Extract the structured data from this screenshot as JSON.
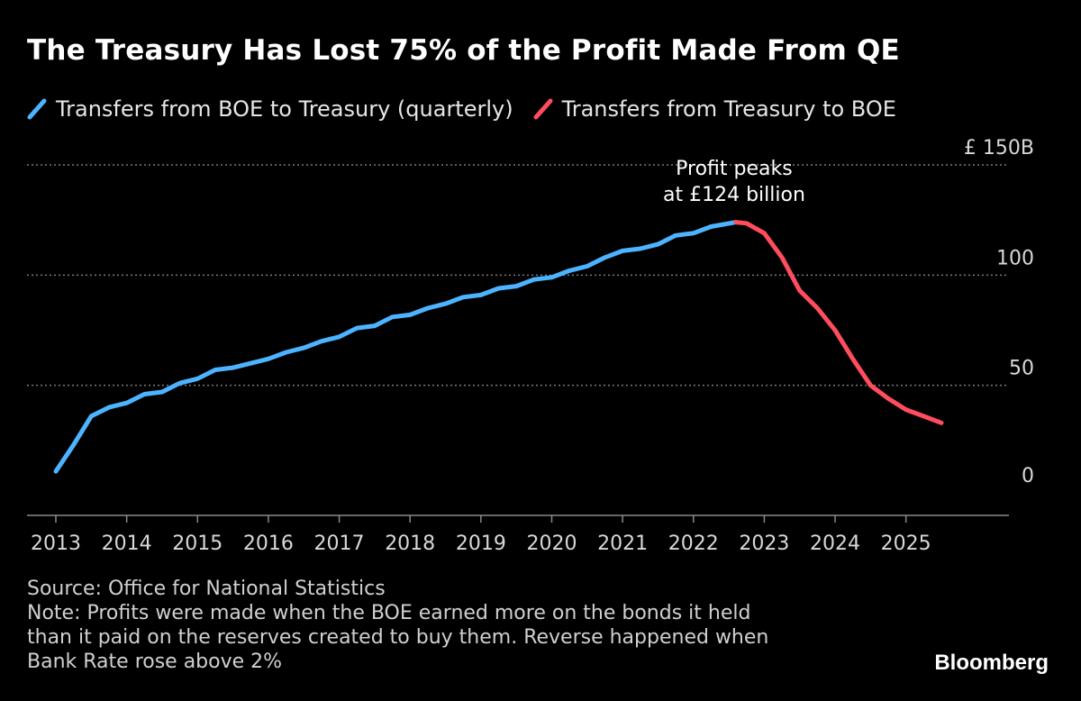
{
  "title": "The Treasury Has Lost 75% of the Profit Made From QE",
  "legend": {
    "series1": "Transfers from BOE to Treasury (quarterly)",
    "series2": "Transfers from Treasury to BOE"
  },
  "source": "Source: Office for National Statistics",
  "note_lines": [
    "Note: Profits were made when the BOE earned more on the bonds it held",
    "than it paid on the reserves created to buy them. Reverse happened when",
    "Bank Rate rose above 2%"
  ],
  "brand": "Bloomberg",
  "chart_data": {
    "type": "line",
    "title": "The Treasury Has Lost 75% of the Profit Made From QE",
    "y_unit_label": "£ 150B",
    "ylim": [
      0,
      150
    ],
    "yticks": [
      0,
      50,
      100,
      150
    ],
    "ytick_labels": [
      "0",
      "50",
      "100",
      "£ 150B"
    ],
    "xlim": [
      2013.0,
      2026.5
    ],
    "xticks": [
      2013,
      2014,
      2015,
      2016,
      2017,
      2018,
      2019,
      2020,
      2021,
      2022,
      2023,
      2024,
      2025
    ],
    "xtick_labels": [
      "2013",
      "2014",
      "2015",
      "2016",
      "2017",
      "2018",
      "2019",
      "2020",
      "2021",
      "2022",
      "2023",
      "2024",
      "2025"
    ],
    "annotation": {
      "lines": [
        "Profit peaks",
        "at £124 billion"
      ],
      "x": 2022.6,
      "y": 124
    },
    "series": [
      {
        "name": "Transfers from BOE to Treasury (quarterly)",
        "color": "#4DB3FF",
        "x": [
          2013.0,
          2013.25,
          2013.5,
          2013.75,
          2014.0,
          2014.25,
          2014.5,
          2014.75,
          2015.0,
          2015.25,
          2015.5,
          2015.75,
          2016.0,
          2016.25,
          2016.5,
          2016.75,
          2017.0,
          2017.25,
          2017.5,
          2017.75,
          2018.0,
          2018.25,
          2018.5,
          2018.75,
          2019.0,
          2019.25,
          2019.5,
          2019.75,
          2020.0,
          2020.25,
          2020.5,
          2020.75,
          2021.0,
          2021.25,
          2021.5,
          2021.75,
          2022.0,
          2022.25,
          2022.6
        ],
        "y": [
          11,
          23,
          36,
          40,
          42,
          46,
          47,
          51,
          53,
          57,
          58,
          60,
          62,
          65,
          67,
          70,
          72,
          76,
          77,
          81,
          82,
          85,
          87,
          90,
          91,
          94,
          95,
          98,
          99,
          102,
          104,
          108,
          111,
          112,
          114,
          118,
          119,
          122,
          124
        ]
      },
      {
        "name": "Transfers from Treasury to BOE",
        "color": "#FF4D5E",
        "x": [
          2022.6,
          2022.75,
          2023.0,
          2023.25,
          2023.5,
          2023.75,
          2024.0,
          2024.25,
          2024.5,
          2024.75,
          2025.0,
          2025.25,
          2025.5
        ],
        "y": [
          124,
          123.5,
          119,
          108,
          93,
          85,
          75,
          62,
          50,
          44,
          39,
          36,
          33
        ]
      }
    ]
  }
}
